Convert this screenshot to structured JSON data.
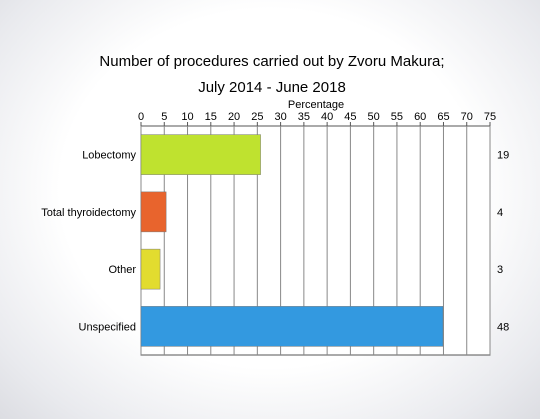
{
  "chart_data": {
    "type": "bar",
    "orientation": "horizontal",
    "title_line1": "Number of procedures carried out by Zvoru Makura;",
    "title_line2": "July 2014 - June 2018",
    "xlabel": "Percentage",
    "xlim": [
      0,
      75
    ],
    "x_ticks": [
      "0",
      "5",
      "10",
      "15",
      "20",
      "25",
      "30",
      "35",
      "40",
      "45",
      "50",
      "55",
      "60",
      "65",
      "70",
      "75"
    ],
    "grid": true,
    "categories": [
      "Lobectomy",
      "Total thyroidectomy",
      "Other",
      "Unspecified"
    ],
    "values": [
      25.7,
      5.4,
      4.1,
      64.9
    ],
    "counts": [
      "19",
      "4",
      "3",
      "48"
    ],
    "colors": [
      "#bfe22f",
      "#e8642d",
      "#e2dc2f",
      "#3399e0"
    ]
  }
}
